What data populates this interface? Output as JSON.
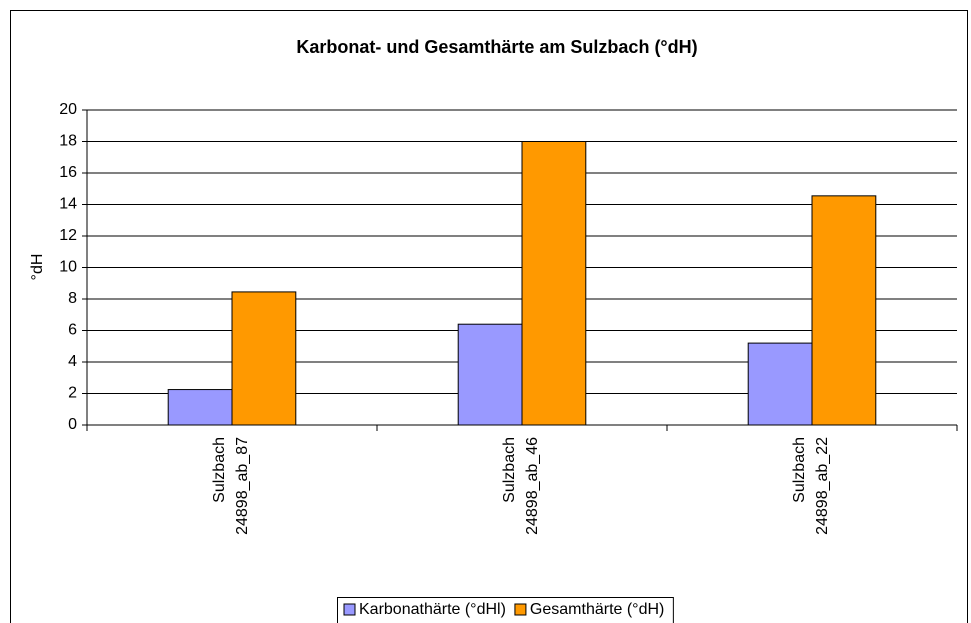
{
  "chart_data": {
    "type": "bar",
    "title": "Karbonat- und Gesamthärte am Sulzbach (°dH)",
    "y_label": "°dH",
    "categories": [
      [
        "Sulzbach",
        "24898_ab_87"
      ],
      [
        "Sulzbach",
        "24898_ab_46"
      ],
      [
        "Sulzbach",
        "24898_ab_22"
      ]
    ],
    "series": [
      {
        "name": "Karbonathärte (°dHl)",
        "color": "#9999ff",
        "values": [
          2.25,
          6.4,
          5.2
        ]
      },
      {
        "name": "Gesamthärte (°dH)",
        "color": "#ff9900",
        "values": [
          8.45,
          18.0,
          14.55
        ]
      }
    ],
    "ylim": [
      0,
      20
    ],
    "yticks": [
      0,
      2,
      4,
      6,
      8,
      10,
      12,
      14,
      16,
      18,
      20
    ],
    "grid": true,
    "legend": "bottom"
  }
}
